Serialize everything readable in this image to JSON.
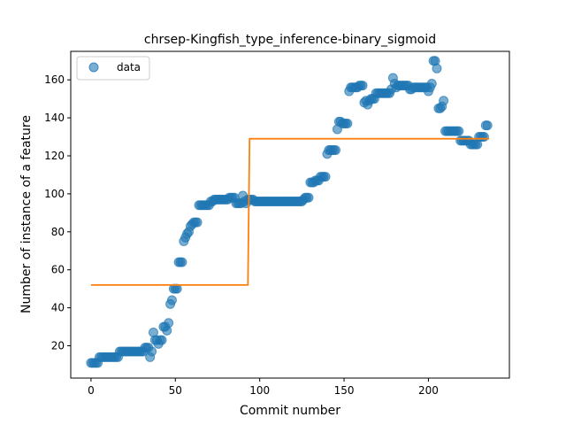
{
  "chart_data": {
    "type": "scatter",
    "title": "chrsep-Kingfish_type_inference-binary_sigmoid",
    "xlabel": "Commit number",
    "ylabel": "Number of instance of a feature",
    "xlim": [
      -12,
      248
    ],
    "ylim": [
      3,
      175
    ],
    "xticks": [
      0,
      50,
      100,
      150,
      200
    ],
    "yticks": [
      20,
      40,
      60,
      80,
      100,
      120,
      140,
      160
    ],
    "grid": false,
    "legend": {
      "placement": "upper left",
      "entries": [
        "data"
      ]
    },
    "colors": {
      "data": "#1f77b4",
      "fit": "#ff7f0e"
    },
    "series": [
      {
        "name": "data",
        "kind": "scatter",
        "points": [
          [
            0,
            11
          ],
          [
            1,
            11
          ],
          [
            2,
            11
          ],
          [
            3,
            11
          ],
          [
            4,
            11
          ],
          [
            5,
            14
          ],
          [
            6,
            14
          ],
          [
            7,
            14
          ],
          [
            8,
            14
          ],
          [
            9,
            14
          ],
          [
            10,
            14
          ],
          [
            11,
            14
          ],
          [
            12,
            14
          ],
          [
            13,
            14
          ],
          [
            14,
            14
          ],
          [
            15,
            14
          ],
          [
            16,
            14
          ],
          [
            17,
            17
          ],
          [
            18,
            17
          ],
          [
            19,
            17
          ],
          [
            20,
            17
          ],
          [
            21,
            17
          ],
          [
            22,
            17
          ],
          [
            23,
            17
          ],
          [
            24,
            17
          ],
          [
            25,
            17
          ],
          [
            26,
            17
          ],
          [
            27,
            17
          ],
          [
            28,
            17
          ],
          [
            29,
            17
          ],
          [
            30,
            17
          ],
          [
            31,
            17
          ],
          [
            32,
            19
          ],
          [
            33,
            19
          ],
          [
            34,
            19
          ],
          [
            35,
            14
          ],
          [
            36,
            17
          ],
          [
            37,
            27
          ],
          [
            38,
            23
          ],
          [
            39,
            23
          ],
          [
            40,
            21
          ],
          [
            41,
            23
          ],
          [
            42,
            23
          ],
          [
            43,
            30
          ],
          [
            44,
            30
          ],
          [
            45,
            28
          ],
          [
            46,
            32
          ],
          [
            47,
            42
          ],
          [
            48,
            44
          ],
          [
            49,
            50
          ],
          [
            50,
            50
          ],
          [
            51,
            50
          ],
          [
            52,
            64
          ],
          [
            53,
            64
          ],
          [
            54,
            64
          ],
          [
            55,
            75
          ],
          [
            56,
            77
          ],
          [
            57,
            79
          ],
          [
            58,
            80
          ],
          [
            59,
            83
          ],
          [
            60,
            84
          ],
          [
            61,
            85
          ],
          [
            62,
            85
          ],
          [
            63,
            85
          ],
          [
            64,
            94
          ],
          [
            65,
            94
          ],
          [
            66,
            94
          ],
          [
            67,
            94
          ],
          [
            68,
            94
          ],
          [
            69,
            94
          ],
          [
            70,
            94
          ],
          [
            71,
            96
          ],
          [
            72,
            96
          ],
          [
            73,
            97
          ],
          [
            74,
            97
          ],
          [
            75,
            97
          ],
          [
            76,
            97
          ],
          [
            77,
            97
          ],
          [
            78,
            97
          ],
          [
            79,
            97
          ],
          [
            80,
            97
          ],
          [
            81,
            97
          ],
          [
            82,
            98
          ],
          [
            83,
            98
          ],
          [
            84,
            98
          ],
          [
            85,
            98
          ],
          [
            86,
            95
          ],
          [
            87,
            95
          ],
          [
            88,
            95
          ],
          [
            89,
            95
          ],
          [
            90,
            99
          ],
          [
            91,
            96
          ],
          [
            92,
            95
          ],
          [
            93,
            97
          ],
          [
            94,
            97
          ],
          [
            95,
            97
          ],
          [
            96,
            97
          ],
          [
            97,
            96
          ],
          [
            98,
            96
          ],
          [
            99,
            96
          ],
          [
            100,
            96
          ],
          [
            101,
            96
          ],
          [
            102,
            96
          ],
          [
            103,
            96
          ],
          [
            104,
            96
          ],
          [
            105,
            96
          ],
          [
            106,
            96
          ],
          [
            107,
            96
          ],
          [
            108,
            96
          ],
          [
            109,
            96
          ],
          [
            110,
            96
          ],
          [
            111,
            96
          ],
          [
            112,
            96
          ],
          [
            113,
            96
          ],
          [
            114,
            96
          ],
          [
            115,
            96
          ],
          [
            116,
            96
          ],
          [
            117,
            96
          ],
          [
            118,
            96
          ],
          [
            119,
            96
          ],
          [
            120,
            96
          ],
          [
            121,
            96
          ],
          [
            122,
            96
          ],
          [
            123,
            96
          ],
          [
            124,
            96
          ],
          [
            125,
            96
          ],
          [
            126,
            97
          ],
          [
            127,
            98
          ],
          [
            128,
            98
          ],
          [
            129,
            98
          ],
          [
            130,
            106
          ],
          [
            131,
            106
          ],
          [
            132,
            106
          ],
          [
            133,
            107
          ],
          [
            134,
            107
          ],
          [
            135,
            107
          ],
          [
            136,
            109
          ],
          [
            137,
            109
          ],
          [
            138,
            109
          ],
          [
            139,
            109
          ],
          [
            140,
            121
          ],
          [
            141,
            123
          ],
          [
            142,
            123
          ],
          [
            143,
            123
          ],
          [
            144,
            123
          ],
          [
            145,
            123
          ],
          [
            146,
            134
          ],
          [
            147,
            138
          ],
          [
            148,
            138
          ],
          [
            149,
            137
          ],
          [
            150,
            137
          ],
          [
            151,
            137
          ],
          [
            152,
            137
          ],
          [
            153,
            154
          ],
          [
            154,
            156
          ],
          [
            155,
            156
          ],
          [
            156,
            156
          ],
          [
            157,
            156
          ],
          [
            158,
            156
          ],
          [
            159,
            157
          ],
          [
            160,
            157
          ],
          [
            161,
            157
          ],
          [
            162,
            148
          ],
          [
            163,
            149
          ],
          [
            164,
            147
          ],
          [
            165,
            149
          ],
          [
            166,
            150
          ],
          [
            167,
            150
          ],
          [
            168,
            150
          ],
          [
            169,
            153
          ],
          [
            170,
            153
          ],
          [
            171,
            153
          ],
          [
            172,
            153
          ],
          [
            173,
            153
          ],
          [
            174,
            153
          ],
          [
            175,
            153
          ],
          [
            176,
            153
          ],
          [
            177,
            153
          ],
          [
            178,
            155
          ],
          [
            179,
            161
          ],
          [
            180,
            158
          ],
          [
            181,
            156
          ],
          [
            182,
            157
          ],
          [
            183,
            157
          ],
          [
            184,
            157
          ],
          [
            185,
            157
          ],
          [
            186,
            157
          ],
          [
            187,
            157
          ],
          [
            188,
            157
          ],
          [
            189,
            155
          ],
          [
            190,
            155
          ],
          [
            191,
            156
          ],
          [
            192,
            156
          ],
          [
            193,
            156
          ],
          [
            194,
            156
          ],
          [
            195,
            156
          ],
          [
            196,
            156
          ],
          [
            197,
            156
          ],
          [
            198,
            156
          ],
          [
            199,
            156
          ],
          [
            200,
            154
          ],
          [
            201,
            156
          ],
          [
            202,
            158
          ],
          [
            203,
            170
          ],
          [
            204,
            170
          ],
          [
            205,
            166
          ],
          [
            206,
            145
          ],
          [
            207,
            145
          ],
          [
            208,
            146
          ],
          [
            209,
            149
          ],
          [
            210,
            133
          ],
          [
            211,
            133
          ],
          [
            212,
            133
          ],
          [
            213,
            133
          ],
          [
            214,
            133
          ],
          [
            215,
            133
          ],
          [
            216,
            133
          ],
          [
            217,
            133
          ],
          [
            218,
            133
          ],
          [
            219,
            128
          ],
          [
            220,
            128
          ],
          [
            221,
            128
          ],
          [
            222,
            128
          ],
          [
            223,
            128
          ],
          [
            224,
            128
          ],
          [
            225,
            126
          ],
          [
            226,
            126
          ],
          [
            227,
            126
          ],
          [
            228,
            126
          ],
          [
            229,
            126
          ],
          [
            230,
            130
          ],
          [
            231,
            130
          ],
          [
            232,
            130
          ],
          [
            233,
            130
          ],
          [
            234,
            136
          ],
          [
            235,
            136
          ]
        ]
      },
      {
        "name": "fit",
        "kind": "line",
        "points": [
          [
            0,
            52
          ],
          [
            93,
            52
          ],
          [
            94,
            129
          ],
          [
            236,
            129
          ]
        ]
      }
    ]
  }
}
